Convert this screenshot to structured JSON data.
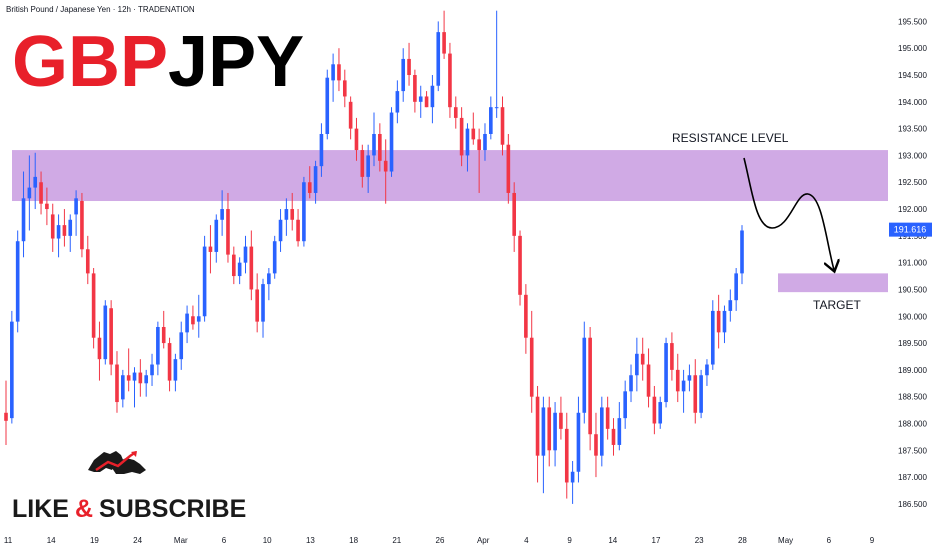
{
  "header": {
    "symbol_description": "British Pound / Japanese Yen · 12h · TRADENATION",
    "ticker_left": "GBP",
    "ticker_right": "JPY"
  },
  "colors": {
    "background": "#ffffff",
    "up_candle": "#2962ff",
    "down_candle": "#f23645",
    "zone": "#c89be0",
    "ticker_red": "#e8202a",
    "ticker_black": "#000000",
    "price_tag": "#2962ff",
    "axis_text": "#131722"
  },
  "branding": {
    "logo_icon": "bull-bear-icon",
    "subscribe_left": "LIKE",
    "subscribe_amp": "&",
    "subscribe_right": "SUBSCRIBE"
  },
  "annotations": {
    "resistance_label": "RESISTANCE LEVEL",
    "target_label": "TARGET"
  },
  "chart_data": {
    "type": "candlestick",
    "title": "GBPJPY",
    "timeframe": "12h",
    "ylim": [
      186.2,
      195.75
    ],
    "y_ticks": [
      "195.500",
      "195.000",
      "194.500",
      "194.000",
      "193.500",
      "193.000",
      "192.500",
      "192.000",
      "191.500",
      "191.000",
      "190.500",
      "190.000",
      "189.500",
      "189.000",
      "188.500",
      "188.000",
      "187.500",
      "187.000",
      "186.500"
    ],
    "x_ticks": [
      "11",
      "14",
      "19",
      "24",
      "Mar",
      "6",
      "10",
      "13",
      "18",
      "21",
      "26",
      "Apr",
      "4",
      "9",
      "14",
      "17",
      "23",
      "28",
      "May",
      "6",
      "9"
    ],
    "last_price": "191.616",
    "zones": [
      {
        "name": "resistance",
        "from": 192.15,
        "to": 193.1
      },
      {
        "name": "target",
        "from": 190.45,
        "to": 190.8
      }
    ],
    "candles": [
      [
        188.2,
        188.8,
        187.6,
        188.05
      ],
      [
        188.1,
        190.1,
        188.0,
        189.9
      ],
      [
        189.9,
        191.6,
        189.7,
        191.4
      ],
      [
        191.4,
        192.7,
        191.1,
        192.2
      ],
      [
        192.2,
        193.0,
        191.6,
        192.4
      ],
      [
        192.4,
        193.05,
        192.0,
        192.6
      ],
      [
        192.5,
        192.7,
        191.9,
        192.1
      ],
      [
        192.1,
        192.4,
        191.7,
        192.0
      ],
      [
        191.9,
        192.1,
        191.2,
        191.45
      ],
      [
        191.45,
        191.9,
        191.1,
        191.7
      ],
      [
        191.7,
        192.0,
        191.3,
        191.5
      ],
      [
        191.5,
        191.9,
        191.2,
        191.8
      ],
      [
        191.9,
        192.35,
        191.5,
        192.2
      ],
      [
        192.15,
        192.3,
        191.1,
        191.25
      ],
      [
        191.25,
        191.5,
        190.6,
        190.8
      ],
      [
        190.8,
        190.9,
        189.4,
        189.6
      ],
      [
        189.6,
        189.9,
        188.8,
        189.2
      ],
      [
        189.2,
        190.3,
        189.1,
        190.2
      ],
      [
        190.15,
        190.3,
        188.9,
        189.1
      ],
      [
        189.1,
        189.35,
        188.2,
        188.4
      ],
      [
        188.45,
        189.0,
        188.3,
        188.9
      ],
      [
        188.9,
        189.4,
        188.6,
        188.8
      ],
      [
        188.8,
        189.05,
        188.3,
        188.95
      ],
      [
        188.95,
        189.2,
        188.5,
        188.75
      ],
      [
        188.75,
        189.0,
        188.5,
        188.9
      ],
      [
        188.9,
        189.3,
        188.7,
        189.1
      ],
      [
        189.1,
        189.9,
        188.9,
        189.8
      ],
      [
        189.8,
        190.1,
        189.4,
        189.5
      ],
      [
        189.5,
        189.6,
        188.6,
        188.8
      ],
      [
        188.8,
        189.3,
        188.6,
        189.2
      ],
      [
        189.2,
        189.9,
        189.0,
        189.7
      ],
      [
        189.7,
        190.2,
        189.5,
        190.05
      ],
      [
        190.0,
        190.2,
        189.75,
        189.85
      ],
      [
        189.9,
        190.4,
        189.6,
        190.0
      ],
      [
        190.0,
        191.5,
        189.9,
        191.3
      ],
      [
        191.3,
        191.7,
        190.8,
        191.2
      ],
      [
        191.2,
        191.9,
        191.0,
        191.8
      ],
      [
        191.8,
        192.35,
        191.5,
        192.0
      ],
      [
        192.0,
        192.3,
        191.0,
        191.15
      ],
      [
        191.15,
        191.3,
        190.6,
        190.75
      ],
      [
        190.75,
        191.1,
        190.6,
        191.0
      ],
      [
        191.0,
        191.5,
        190.8,
        191.3
      ],
      [
        191.3,
        191.6,
        190.3,
        190.5
      ],
      [
        190.5,
        190.8,
        189.7,
        189.9
      ],
      [
        189.9,
        190.7,
        189.6,
        190.6
      ],
      [
        190.6,
        190.9,
        190.3,
        190.8
      ],
      [
        190.8,
        191.5,
        190.7,
        191.4
      ],
      [
        191.4,
        192.0,
        191.2,
        191.8
      ],
      [
        191.8,
        192.2,
        191.5,
        192.0
      ],
      [
        192.0,
        192.3,
        191.6,
        191.8
      ],
      [
        191.8,
        192.0,
        191.3,
        191.4
      ],
      [
        191.4,
        192.6,
        191.3,
        192.5
      ],
      [
        192.5,
        192.8,
        192.2,
        192.3
      ],
      [
        192.3,
        192.9,
        192.1,
        192.8
      ],
      [
        192.8,
        193.6,
        192.6,
        193.4
      ],
      [
        193.4,
        194.6,
        193.3,
        194.45
      ],
      [
        194.4,
        194.9,
        194.0,
        194.7
      ],
      [
        194.7,
        195.0,
        194.2,
        194.4
      ],
      [
        194.4,
        194.6,
        193.9,
        194.1
      ],
      [
        194.0,
        194.1,
        193.3,
        193.5
      ],
      [
        193.5,
        193.7,
        192.9,
        193.1
      ],
      [
        193.1,
        193.2,
        192.4,
        192.6
      ],
      [
        192.6,
        193.2,
        192.3,
        193.0
      ],
      [
        193.0,
        193.8,
        192.8,
        193.4
      ],
      [
        193.4,
        193.6,
        192.7,
        192.9
      ],
      [
        192.9,
        193.3,
        192.1,
        192.7
      ],
      [
        192.7,
        193.9,
        192.6,
        193.8
      ],
      [
        193.8,
        194.4,
        193.6,
        194.2
      ],
      [
        194.2,
        195.0,
        194.0,
        194.8
      ],
      [
        194.8,
        195.1,
        194.3,
        194.5
      ],
      [
        194.5,
        194.6,
        193.8,
        194.0
      ],
      [
        194.0,
        194.3,
        193.7,
        194.1
      ],
      [
        194.1,
        194.2,
        193.9,
        193.9
      ],
      [
        193.9,
        194.5,
        193.6,
        194.3
      ],
      [
        194.3,
        195.5,
        194.2,
        195.3
      ],
      [
        195.3,
        195.7,
        194.8,
        194.9
      ],
      [
        194.9,
        195.1,
        193.7,
        193.9
      ],
      [
        193.9,
        194.1,
        193.5,
        193.7
      ],
      [
        193.7,
        193.9,
        192.8,
        193.0
      ],
      [
        193.0,
        193.6,
        192.7,
        193.5
      ],
      [
        193.5,
        193.8,
        193.2,
        193.3
      ],
      [
        193.3,
        193.5,
        192.3,
        193.1
      ],
      [
        193.1,
        193.6,
        192.9,
        193.4
      ],
      [
        193.4,
        194.1,
        193.3,
        193.9
      ],
      [
        193.9,
        195.7,
        193.7,
        193.9
      ],
      [
        193.9,
        194.1,
        193.0,
        193.2
      ],
      [
        193.2,
        193.4,
        192.1,
        192.3
      ],
      [
        192.3,
        192.5,
        191.2,
        191.5
      ],
      [
        191.5,
        191.6,
        190.2,
        190.4
      ],
      [
        190.4,
        190.6,
        189.3,
        189.6
      ],
      [
        189.6,
        190.1,
        188.2,
        188.5
      ],
      [
        188.5,
        188.7,
        186.9,
        187.4
      ],
      [
        187.4,
        188.5,
        186.7,
        188.3
      ],
      [
        188.3,
        188.5,
        187.2,
        187.5
      ],
      [
        187.5,
        188.4,
        187.2,
        188.2
      ],
      [
        188.2,
        188.5,
        187.7,
        187.9
      ],
      [
        187.9,
        188.2,
        186.6,
        186.9
      ],
      [
        186.9,
        187.3,
        186.5,
        187.1
      ],
      [
        187.1,
        188.5,
        186.9,
        188.2
      ],
      [
        188.2,
        189.9,
        188.0,
        189.6
      ],
      [
        189.6,
        189.8,
        187.5,
        187.8
      ],
      [
        187.8,
        188.2,
        187.0,
        187.4
      ],
      [
        187.4,
        188.5,
        187.2,
        188.3
      ],
      [
        188.3,
        188.5,
        187.7,
        187.9
      ],
      [
        187.9,
        188.1,
        187.4,
        187.6
      ],
      [
        187.6,
        188.4,
        187.5,
        188.1
      ],
      [
        188.1,
        188.8,
        187.9,
        188.6
      ],
      [
        188.6,
        189.1,
        188.4,
        188.9
      ],
      [
        188.9,
        189.6,
        188.6,
        189.3
      ],
      [
        189.3,
        189.6,
        188.8,
        189.1
      ],
      [
        189.1,
        189.4,
        188.3,
        188.5
      ],
      [
        188.5,
        188.7,
        187.8,
        188.0
      ],
      [
        188.0,
        188.5,
        187.9,
        188.4
      ],
      [
        188.4,
        189.6,
        188.3,
        189.5
      ],
      [
        189.5,
        189.7,
        188.8,
        189.0
      ],
      [
        189.0,
        189.3,
        188.4,
        188.6
      ],
      [
        188.6,
        189.0,
        188.2,
        188.8
      ],
      [
        188.8,
        189.1,
        188.6,
        188.9
      ],
      [
        188.9,
        189.2,
        188.0,
        188.2
      ],
      [
        188.2,
        189.0,
        188.1,
        188.9
      ],
      [
        188.9,
        189.2,
        188.7,
        189.1
      ],
      [
        189.1,
        190.3,
        189.0,
        190.1
      ],
      [
        190.1,
        190.4,
        189.4,
        189.7
      ],
      [
        189.7,
        190.2,
        189.5,
        190.1
      ],
      [
        190.1,
        190.5,
        189.9,
        190.3
      ],
      [
        190.3,
        190.9,
        190.1,
        190.8
      ],
      [
        190.8,
        191.7,
        190.6,
        191.6
      ]
    ]
  }
}
